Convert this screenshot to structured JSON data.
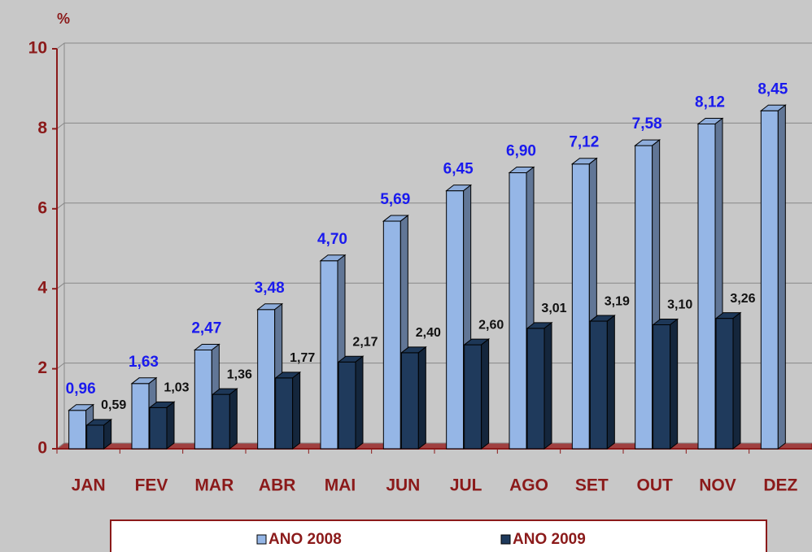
{
  "chart_data": {
    "type": "bar3d",
    "y_label": "%",
    "categories": [
      "JAN",
      "FEV",
      "MAR",
      "ABR",
      "MAI",
      "JUN",
      "JUL",
      "AGO",
      "SET",
      "OUT",
      "NOV",
      "DEZ"
    ],
    "series": [
      {
        "name": "ANO 2008",
        "color": "#95b6e6",
        "label_color": "#1a1aee",
        "values": [
          0.96,
          1.63,
          2.47,
          3.48,
          4.7,
          5.69,
          6.45,
          6.9,
          7.12,
          7.58,
          8.12,
          8.45
        ],
        "value_labels": [
          "0,96",
          "1,63",
          "2,47",
          "3,48",
          "4,70",
          "5,69",
          "6,45",
          "6,90",
          "7,12",
          "7,58",
          "8,12",
          "8,45"
        ]
      },
      {
        "name": "ANO 2009",
        "color": "#1f3a5c",
        "label_color": "#111111",
        "values": [
          0.59,
          1.03,
          1.36,
          1.77,
          2.17,
          2.4,
          2.6,
          3.01,
          3.19,
          3.1,
          3.26,
          null
        ],
        "value_labels": [
          "0,59",
          "1,03",
          "1,36",
          "1,77",
          "2,17",
          "2,40",
          "2,60",
          "3,01",
          "3,19",
          "3,10",
          "3,26",
          null
        ]
      }
    ],
    "ylim": [
      0,
      10
    ],
    "yticks": [
      0,
      2,
      4,
      6,
      8,
      10
    ],
    "grid": true,
    "legend": "bottom"
  }
}
